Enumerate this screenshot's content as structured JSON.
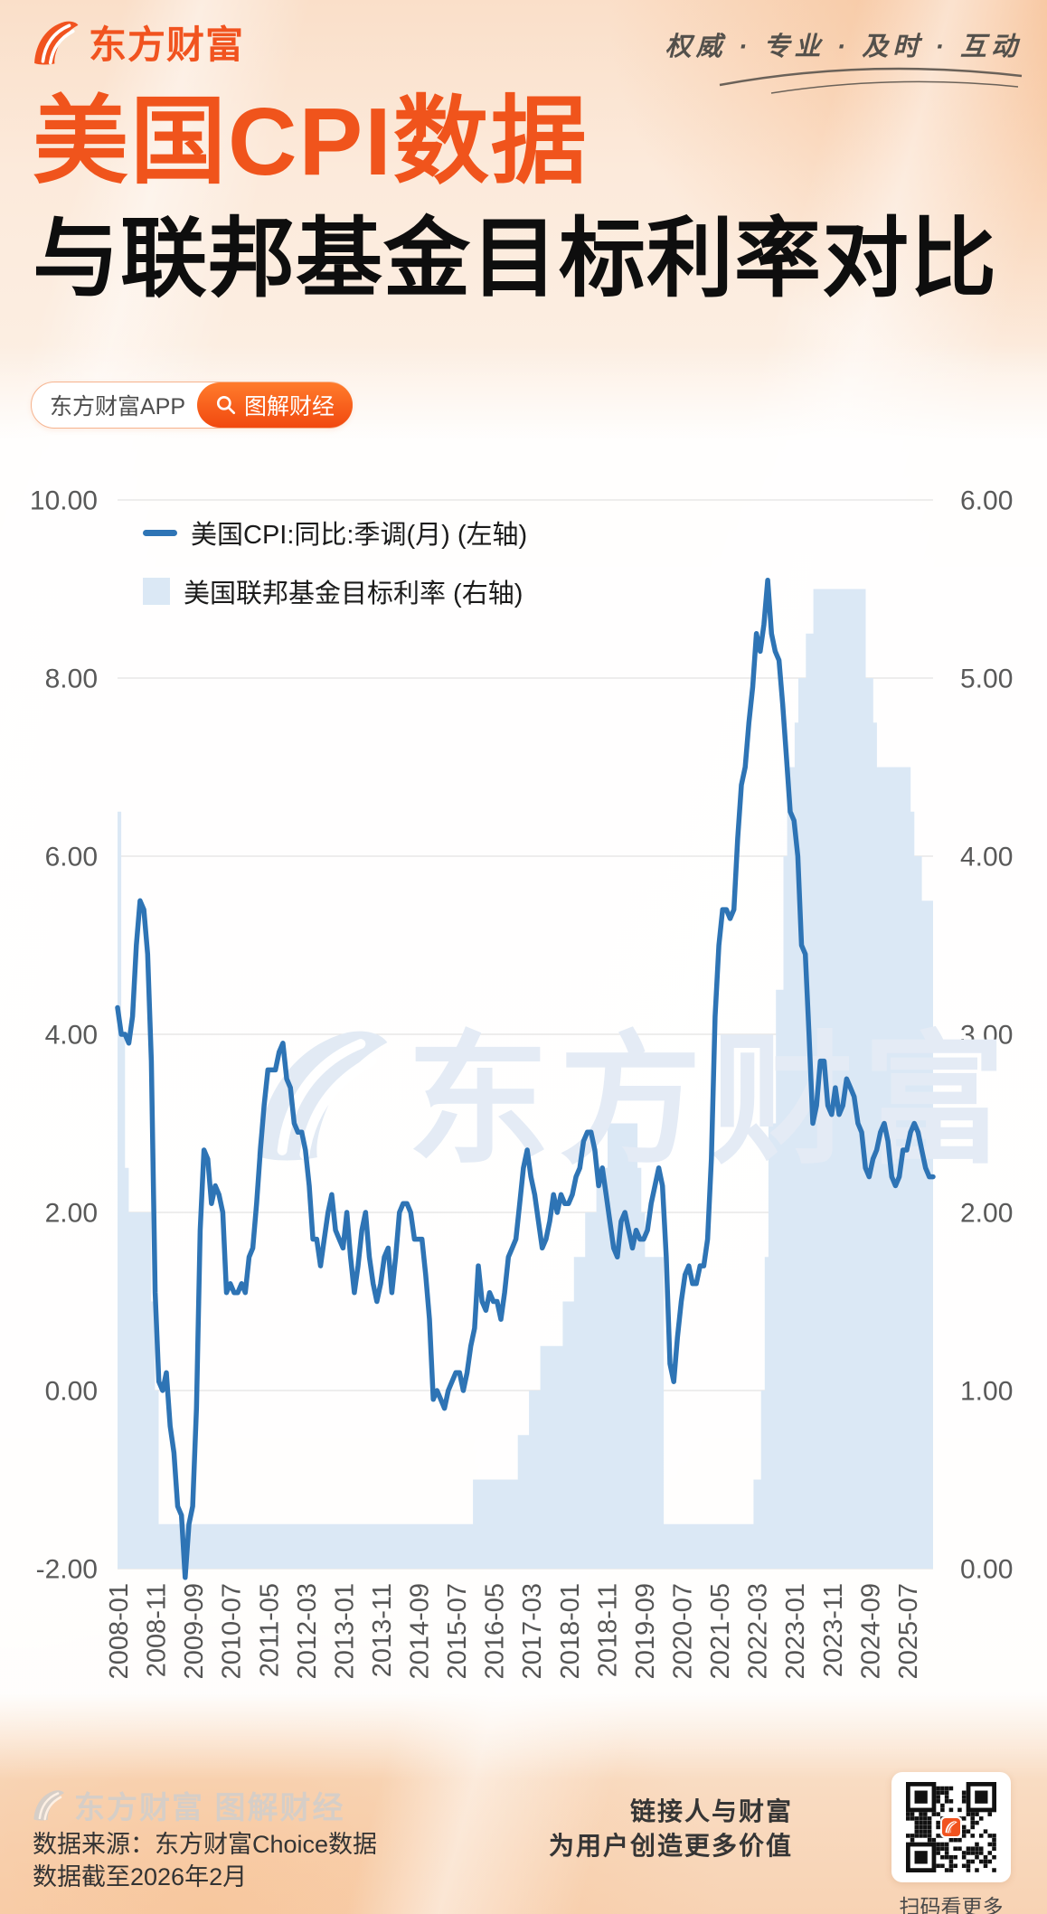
{
  "header": {
    "logo_text": "东方财富",
    "tagline": "权威 · 专业 · 及时 · 互动",
    "title_line1": "美国CPI数据",
    "title_line2": "与联邦基金目标利率对比",
    "app_pill_label": "东方财富APP",
    "channel_pill_label": "图解财经"
  },
  "chart_data": {
    "type": "line",
    "title": "",
    "x_start": "2008-01",
    "x_end": "2026-02",
    "x_tick_interval_months": 10,
    "x_labels": [
      "2008-01",
      "2008-11",
      "2009-09",
      "2010-07",
      "2011-05",
      "2012-03",
      "2013-01",
      "2013-11",
      "2014-09",
      "2015-07",
      "2016-05",
      "2017-03",
      "2018-01",
      "2018-11",
      "2019-09",
      "2020-07",
      "2021-05",
      "2022-03",
      "2023-01",
      "2023-11",
      "2024-09",
      "2025-07"
    ],
    "left_axis": {
      "ticks": [
        "10.00",
        "8.00",
        "6.00",
        "4.00",
        "2.00",
        "0.00",
        "-2.00"
      ],
      "range": [
        -2,
        10
      ]
    },
    "right_axis": {
      "ticks": [
        "6.00",
        "5.00",
        "4.00",
        "3.00",
        "2.00",
        "1.00",
        "0.00"
      ],
      "range": [
        0,
        6
      ]
    },
    "grid": true,
    "legend_position": "top-left",
    "watermark_text": "东方财富",
    "series": [
      {
        "name": "美国CPI:同比:季调(月) (左轴)",
        "type": "line",
        "axis": "left",
        "color": "#2e74b5",
        "values": [
          4.3,
          4.0,
          4.0,
          3.9,
          4.2,
          5.0,
          5.5,
          5.4,
          4.9,
          3.7,
          1.1,
          0.1,
          0.0,
          0.2,
          -0.4,
          -0.7,
          -1.3,
          -1.4,
          -2.1,
          -1.5,
          -1.3,
          -0.2,
          1.8,
          2.7,
          2.6,
          2.1,
          2.3,
          2.2,
          2.0,
          1.1,
          1.2,
          1.1,
          1.1,
          1.2,
          1.1,
          1.5,
          1.6,
          2.1,
          2.7,
          3.2,
          3.6,
          3.6,
          3.6,
          3.8,
          3.9,
          3.5,
          3.4,
          3.0,
          2.9,
          2.9,
          2.7,
          2.3,
          1.7,
          1.7,
          1.4,
          1.7,
          2.0,
          2.2,
          1.8,
          1.7,
          1.6,
          2.0,
          1.5,
          1.1,
          1.4,
          1.8,
          2.0,
          1.5,
          1.2,
          1.0,
          1.2,
          1.5,
          1.6,
          1.1,
          1.5,
          2.0,
          2.1,
          2.1,
          2.0,
          1.7,
          1.7,
          1.7,
          1.3,
          0.8,
          -0.1,
          0.0,
          -0.1,
          -0.2,
          0.0,
          0.1,
          0.2,
          0.2,
          0.0,
          0.2,
          0.5,
          0.7,
          1.4,
          1.0,
          0.9,
          1.1,
          1.0,
          1.0,
          0.8,
          1.1,
          1.5,
          1.6,
          1.7,
          2.1,
          2.5,
          2.7,
          2.4,
          2.2,
          1.9,
          1.6,
          1.7,
          1.9,
          2.2,
          2.0,
          2.2,
          2.1,
          2.1,
          2.2,
          2.4,
          2.5,
          2.8,
          2.9,
          2.9,
          2.7,
          2.3,
          2.5,
          2.2,
          1.9,
          1.6,
          1.5,
          1.9,
          2.0,
          1.8,
          1.6,
          1.8,
          1.7,
          1.7,
          1.8,
          2.1,
          2.3,
          2.5,
          2.3,
          1.5,
          0.3,
          0.1,
          0.6,
          1.0,
          1.3,
          1.4,
          1.2,
          1.2,
          1.4,
          1.4,
          1.7,
          2.6,
          4.2,
          5.0,
          5.4,
          5.4,
          5.3,
          5.4,
          6.2,
          6.8,
          7.0,
          7.5,
          7.9,
          8.5,
          8.3,
          8.6,
          9.1,
          8.5,
          8.3,
          8.2,
          7.7,
          7.1,
          6.5,
          6.4,
          6.0,
          5.0,
          4.9,
          4.0,
          3.0,
          3.2,
          3.7,
          3.7,
          3.2,
          3.1,
          3.4,
          3.1,
          3.2,
          3.5,
          3.4,
          3.3,
          3.0,
          2.9,
          2.5,
          2.4,
          2.6,
          2.7,
          2.9,
          3.0,
          2.8,
          2.4,
          2.3,
          2.4,
          2.7,
          2.7,
          2.9,
          3.0,
          2.9,
          2.7,
          2.5,
          2.4,
          2.4
        ]
      },
      {
        "name": "美国联邦基金目标利率 (右轴)",
        "type": "step-area",
        "axis": "right",
        "color": "#dbe8f5",
        "values": [
          4.25,
          3.0,
          2.25,
          2.0,
          2.0,
          2.0,
          2.0,
          2.0,
          2.0,
          1.5,
          1.0,
          0.25,
          0.25,
          0.25,
          0.25,
          0.25,
          0.25,
          0.25,
          0.25,
          0.25,
          0.25,
          0.25,
          0.25,
          0.25,
          0.25,
          0.25,
          0.25,
          0.25,
          0.25,
          0.25,
          0.25,
          0.25,
          0.25,
          0.25,
          0.25,
          0.25,
          0.25,
          0.25,
          0.25,
          0.25,
          0.25,
          0.25,
          0.25,
          0.25,
          0.25,
          0.25,
          0.25,
          0.25,
          0.25,
          0.25,
          0.25,
          0.25,
          0.25,
          0.25,
          0.25,
          0.25,
          0.25,
          0.25,
          0.25,
          0.25,
          0.25,
          0.25,
          0.25,
          0.25,
          0.25,
          0.25,
          0.25,
          0.25,
          0.25,
          0.25,
          0.25,
          0.25,
          0.25,
          0.25,
          0.25,
          0.25,
          0.25,
          0.25,
          0.25,
          0.25,
          0.25,
          0.25,
          0.25,
          0.25,
          0.25,
          0.25,
          0.25,
          0.25,
          0.25,
          0.25,
          0.25,
          0.25,
          0.25,
          0.25,
          0.25,
          0.5,
          0.5,
          0.5,
          0.5,
          0.5,
          0.5,
          0.5,
          0.5,
          0.5,
          0.5,
          0.5,
          0.5,
          0.75,
          0.75,
          0.75,
          1.0,
          1.0,
          1.0,
          1.25,
          1.25,
          1.25,
          1.25,
          1.25,
          1.25,
          1.5,
          1.5,
          1.5,
          1.75,
          1.75,
          1.75,
          2.0,
          2.0,
          2.0,
          2.25,
          2.25,
          2.25,
          2.5,
          2.5,
          2.5,
          2.5,
          2.5,
          2.5,
          2.5,
          2.5,
          2.25,
          2.0,
          1.75,
          1.75,
          1.75,
          1.75,
          1.75,
          0.25,
          0.25,
          0.25,
          0.25,
          0.25,
          0.25,
          0.25,
          0.25,
          0.25,
          0.25,
          0.25,
          0.25,
          0.25,
          0.25,
          0.25,
          0.25,
          0.25,
          0.25,
          0.25,
          0.25,
          0.25,
          0.25,
          0.25,
          0.25,
          0.5,
          0.5,
          1.0,
          1.75,
          2.5,
          2.5,
          3.25,
          3.25,
          4.0,
          4.5,
          4.5,
          4.75,
          5.0,
          5.0,
          5.25,
          5.25,
          5.5,
          5.5,
          5.5,
          5.5,
          5.5,
          5.5,
          5.5,
          5.5,
          5.5,
          5.5,
          5.5,
          5.5,
          5.5,
          5.5,
          5.0,
          5.0,
          4.75,
          4.5,
          4.5,
          4.5,
          4.5,
          4.5,
          4.5,
          4.5,
          4.5,
          4.5,
          4.25,
          4.0,
          4.0,
          3.75,
          3.75,
          3.75
        ]
      }
    ]
  },
  "footer": {
    "brand": "东方财富 图解财经",
    "source_line1": "数据来源：东方财富Choice数据",
    "source_line2": "数据截至2026年2月",
    "slogan_line1": "链接人与财富",
    "slogan_line2": "为用户创造更多价值",
    "qr_caption": "扫码看更多"
  }
}
